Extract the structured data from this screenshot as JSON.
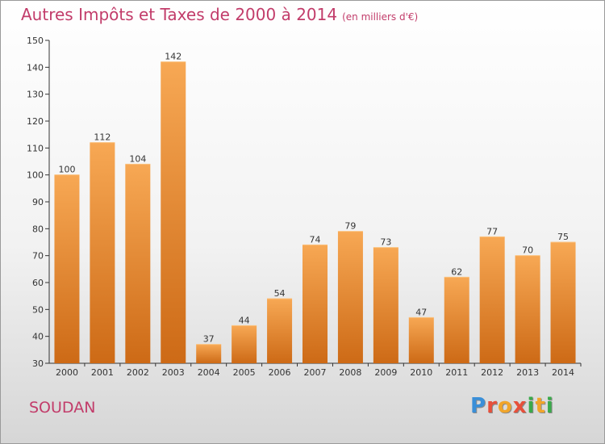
{
  "header": {
    "title": "Autres Impôts et Taxes de 2000 à 2014",
    "unit": "(en milliers d'€)"
  },
  "footer": {
    "place": "SOUDAN",
    "logo": "Proxiti"
  },
  "colors": {
    "bar_top": "#f7a854",
    "bar_bottom": "#cd6a16",
    "title": "#c23c6a",
    "axis": "#333333"
  },
  "chart_data": {
    "type": "bar",
    "title": "Autres Impôts et Taxes de 2000 à 2014",
    "subtitle": "(en milliers d'€)",
    "categories": [
      "2000",
      "2001",
      "2002",
      "2003",
      "2004",
      "2005",
      "2006",
      "2007",
      "2008",
      "2009",
      "2010",
      "2011",
      "2012",
      "2013",
      "2014"
    ],
    "values": [
      100,
      112,
      104,
      142,
      37,
      44,
      54,
      74,
      79,
      73,
      47,
      62,
      77,
      70,
      75
    ],
    "ylim": [
      30,
      150
    ],
    "yticks": [
      30,
      40,
      50,
      60,
      70,
      80,
      90,
      100,
      110,
      120,
      130,
      140,
      150
    ],
    "xlabel": "",
    "ylabel": "",
    "grid": false,
    "legend": "none"
  }
}
